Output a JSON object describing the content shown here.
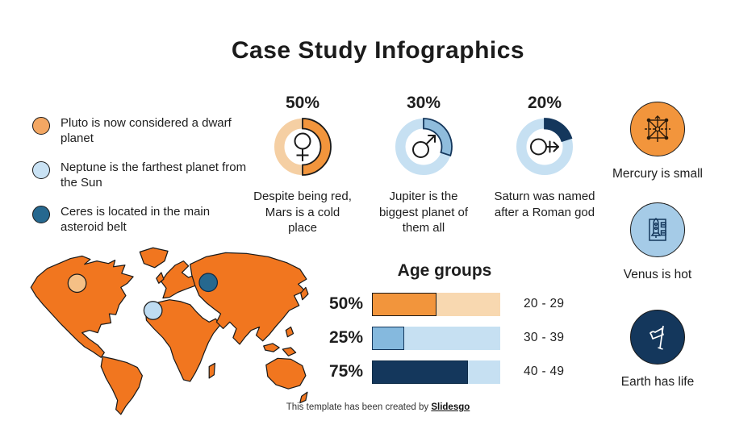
{
  "title": "Case Study Infographics",
  "legend": {
    "items": [
      {
        "label": "Pluto is now considered a dwarf planet",
        "color": "#F3A763"
      },
      {
        "label": "Neptune is the farthest planet from the Sun",
        "color": "#C9E2F4"
      },
      {
        "label": "Ceres is located in the main asteroid belt",
        "color": "#26688F"
      }
    ]
  },
  "feature_icons": [
    {
      "icon": "mercury-network-icon",
      "caption": "Mercury is small",
      "circle_color": "#F2953C"
    },
    {
      "icon": "venus-rocket-icon",
      "caption": "Venus is hot",
      "circle_color": "#A5CBE7"
    },
    {
      "icon": "earth-flag-icon",
      "caption": "Earth has life",
      "circle_color": "#14375C"
    }
  ],
  "map": {
    "name": "world-map",
    "land_color": "#F1761F",
    "outline_color": "#1A1A1A",
    "markers": [
      {
        "name": "pluto-marker",
        "color": "#F5C086",
        "location": "north-america"
      },
      {
        "name": "neptune-marker",
        "color": "#BEDCF2",
        "location": "africa"
      },
      {
        "name": "ceres-marker",
        "color": "#26688F",
        "location": "asia"
      }
    ]
  },
  "footer": {
    "text": "This template has been created by ",
    "brand": "Slidesgo"
  },
  "chart_data": [
    {
      "type": "donut",
      "label": "50%",
      "percent": 50,
      "center_symbol": "female",
      "caption": "Despite being red, Mars is a cold place",
      "arc_color": "#F2953C",
      "track_color": "#F5CFA3",
      "arc_outline": "#1A1A1A"
    },
    {
      "type": "donut",
      "label": "30%",
      "percent": 30,
      "center_symbol": "male",
      "caption": "Jupiter is the biggest planet of them all",
      "arc_color": "#8FBCDC",
      "track_color": "#C6E0F2",
      "arc_outline": "#14375C"
    },
    {
      "type": "donut",
      "label": "20%",
      "percent": 20,
      "center_symbol": "male-stroke",
      "caption": "Saturn was named after a Roman god",
      "arc_color": "#14375C",
      "track_color": "#C6E0F2",
      "arc_outline": "#14375C"
    },
    {
      "type": "bar",
      "title": "Age groups",
      "categories": [
        "20 - 29",
        "30 - 39",
        "40 - 49"
      ],
      "values": [
        50,
        25,
        75
      ],
      "value_labels": [
        "50%",
        "25%",
        "75%"
      ],
      "xlim": [
        0,
        100
      ],
      "bar_colors": [
        "#F2953C",
        "#85B9DE",
        "#14375C"
      ],
      "track_colors": [
        "#F8D8B0",
        "#C6E0F2",
        "#C6E0F2"
      ],
      "bar_outlines": [
        "#1A1A1A",
        "#14375C",
        "#0D2B47"
      ]
    }
  ]
}
